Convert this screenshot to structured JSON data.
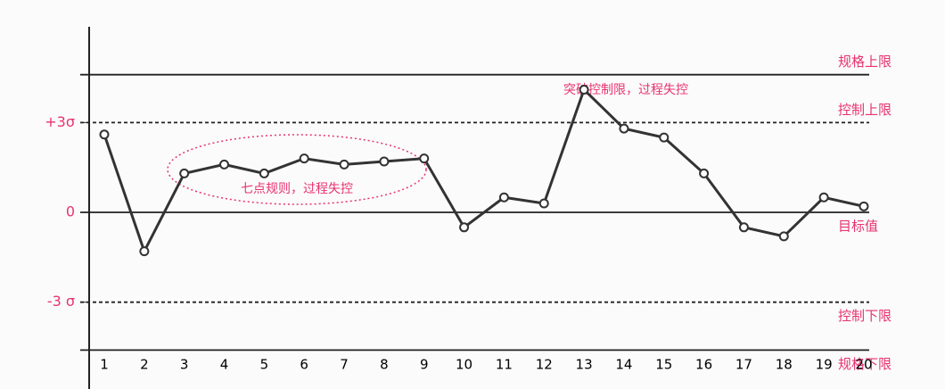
{
  "chart_data": {
    "type": "line",
    "categories": [
      "1",
      "2",
      "3",
      "4",
      "5",
      "6",
      "7",
      "8",
      "9",
      "10",
      "11",
      "12",
      "13",
      "14",
      "15",
      "16",
      "17",
      "18",
      "19",
      "20"
    ],
    "values": [
      2.6,
      -1.3,
      1.3,
      1.6,
      1.3,
      1.8,
      1.6,
      1.7,
      1.8,
      -0.5,
      0.5,
      0.3,
      4.1,
      2.8,
      2.5,
      1.3,
      -0.5,
      -0.8,
      0.5,
      0.2
    ],
    "color": "#333333",
    "ylim": [
      -5.9,
      6.2
    ],
    "yticks": [
      {
        "value": 3,
        "label": "+3σ"
      },
      {
        "value": 0,
        "label": "0"
      },
      {
        "value": -3,
        "label": "-3 σ"
      }
    ],
    "reference_lines": [
      {
        "value": 4.6,
        "label": "规格上限",
        "style": "solid"
      },
      {
        "value": 3,
        "label": "控制上限",
        "style": "dashed"
      },
      {
        "value": 0,
        "label": "目标值",
        "style": "solid"
      },
      {
        "value": -3,
        "label": "控制下限",
        "style": "dashed"
      },
      {
        "value": -4.6,
        "label": "规格下限",
        "style": "solid"
      }
    ],
    "annotations": [
      "突破控制限，过程失控",
      "七点规则，过程失控"
    ]
  }
}
